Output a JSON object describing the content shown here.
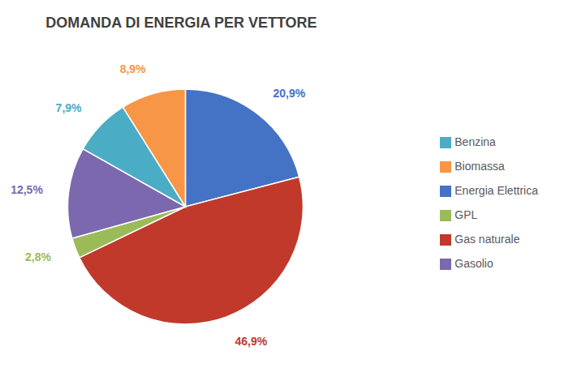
{
  "chart_data": {
    "type": "pie",
    "title": "DOMANDA DI ENERGIA PER VETTORE",
    "categories": [
      "Energia Elettrica",
      "Gas naturale",
      "GPL",
      "Gasolio",
      "Benzina",
      "Biomassa"
    ],
    "values": [
      20.9,
      46.9,
      2.8,
      12.5,
      7.9,
      8.9
    ],
    "value_labels": [
      "20,9%",
      "46,9%",
      "2,8%",
      "12,5%",
      "7,9%",
      "8,9%"
    ],
    "colors": [
      "#4472C4",
      "#C0392B",
      "#9BBB59",
      "#7B68AE",
      "#4BACC6",
      "#F79646"
    ],
    "data_labels": true,
    "legend": "right"
  }
}
